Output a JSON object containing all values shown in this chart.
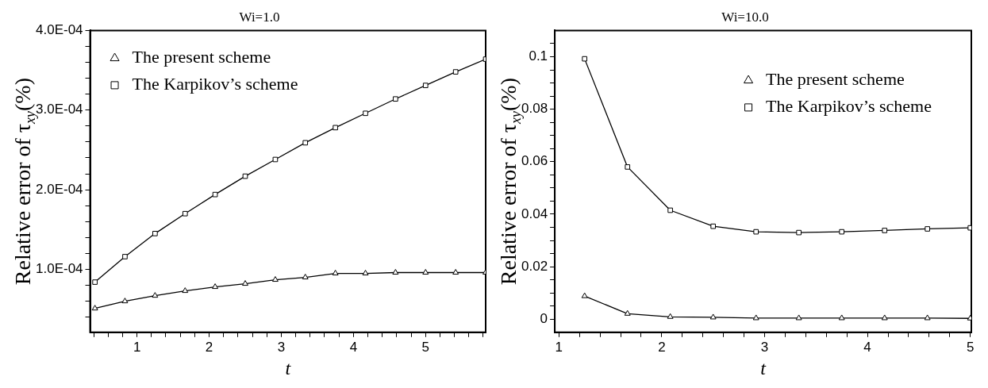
{
  "chart_data": [
    {
      "type": "line",
      "title": "Wi=1.0",
      "xlabel": "t",
      "ylabel": "Relative error of τ$_{xy}$(%)",
      "legend": "top left",
      "grid": false,
      "line_style": "solid",
      "xlim": [
        0.35,
        5.833
      ],
      "ylim": [
        2.1e-05,
        0.0004
      ],
      "xticks": [
        {
          "value": 0.4,
          "label": null
        },
        {
          "value": 0.6,
          "label": null
        },
        {
          "value": 0.8,
          "label": null
        },
        1,
        {
          "value": 1.2,
          "label": null
        },
        {
          "value": 1.4,
          "label": null
        },
        {
          "value": 1.6,
          "label": null
        },
        {
          "value": 1.8,
          "label": null
        },
        2,
        {
          "value": 2.2,
          "label": null
        },
        {
          "value": 2.4,
          "label": null
        },
        {
          "value": 2.6,
          "label": null
        },
        {
          "value": 2.8,
          "label": null
        },
        3,
        {
          "value": 3.2,
          "label": null
        },
        {
          "value": 3.4,
          "label": null
        },
        {
          "value": 3.6,
          "label": null
        },
        {
          "value": 3.8,
          "label": null
        },
        4,
        {
          "value": 4.2,
          "label": null
        },
        {
          "value": 4.4,
          "label": null
        },
        {
          "value": 4.6,
          "label": null
        },
        {
          "value": 4.8,
          "label": null
        },
        5,
        {
          "value": 5.2,
          "label": null
        },
        {
          "value": 5.4,
          "label": null
        },
        {
          "value": 5.6,
          "label": null
        },
        {
          "value": 5.8,
          "label": null
        }
      ],
      "yticks": [
        {
          "value": 4e-05,
          "label": null
        },
        {
          "value": 6e-05,
          "label": null
        },
        {
          "value": 8e-05,
          "label": null
        },
        {
          "value": 0.0001,
          "label": "1.0E-04"
        },
        {
          "value": 0.00012,
          "label": null
        },
        {
          "value": 0.00014,
          "label": null
        },
        {
          "value": 0.00016,
          "label": null
        },
        {
          "value": 0.00018,
          "label": null
        },
        {
          "value": 0.0002,
          "label": "2.0E-04"
        },
        {
          "value": 0.00022,
          "label": null
        },
        {
          "value": 0.00024,
          "label": null
        },
        {
          "value": 0.00026,
          "label": null
        },
        {
          "value": 0.00028,
          "label": null
        },
        {
          "value": 0.0003,
          "label": "3.0E-04"
        },
        {
          "value": 0.00032,
          "label": null
        },
        {
          "value": 0.00034,
          "label": null
        },
        {
          "value": 0.00036,
          "label": null
        },
        {
          "value": 0.00038,
          "label": null
        },
        {
          "value": 0.0004,
          "label": "4.0E-04"
        }
      ],
      "x": [
        0.417,
        0.833,
        1.25,
        1.667,
        2.083,
        2.5,
        2.917,
        3.333,
        3.75,
        4.167,
        4.583,
        5,
        5.417,
        5.833
      ],
      "series": [
        {
          "name": "The present scheme",
          "color": "#000000",
          "marker": "triangle",
          "values": [
            5.1e-05,
            6e-05,
            6.7e-05,
            7.3e-05,
            7.8e-05,
            8.2e-05,
            8.7e-05,
            9e-05,
            9.5e-05,
            9.5e-05,
            9.6e-05,
            9.6e-05,
            9.6e-05,
            9.6e-05
          ]
        },
        {
          "name": "The Karpikov’s scheme",
          "color": "#000000",
          "marker": "square",
          "values": [
            8.4e-05,
            0.000116,
            0.000145,
            0.00017,
            0.000194,
            0.000217,
            0.000238,
            0.000259,
            0.000278,
            0.000296,
            0.000314,
            0.000331,
            0.000348,
            0.000364
          ]
        }
      ]
    },
    {
      "type": "line",
      "title": "Wi=10.0",
      "xlabel": "t",
      "ylabel": "Relative error of τ$_{xy}$(%)",
      "legend": "top right",
      "grid": false,
      "line_style": "solid",
      "xlim": [
        0.96,
        5.01
      ],
      "ylim": [
        -0.005,
        0.11
      ],
      "xticks": [
        1,
        {
          "value": 1.2,
          "label": null
        },
        {
          "value": 1.4,
          "label": null
        },
        {
          "value": 1.6,
          "label": null
        },
        {
          "value": 1.8,
          "label": null
        },
        2,
        {
          "value": 2.2,
          "label": null
        },
        {
          "value": 2.4,
          "label": null
        },
        {
          "value": 2.6,
          "label": null
        },
        {
          "value": 2.8,
          "label": null
        },
        3,
        {
          "value": 3.2,
          "label": null
        },
        {
          "value": 3.4,
          "label": null
        },
        {
          "value": 3.6,
          "label": null
        },
        {
          "value": 3.8,
          "label": null
        },
        4,
        {
          "value": 4.2,
          "label": null
        },
        {
          "value": 4.4,
          "label": null
        },
        {
          "value": 4.6,
          "label": null
        },
        {
          "value": 4.8,
          "label": null
        },
        5
      ],
      "yticks": [
        0,
        {
          "value": 0.005,
          "label": null
        },
        {
          "value": 0.01,
          "label": null
        },
        {
          "value": 0.015,
          "label": null
        },
        0.02,
        {
          "value": 0.025,
          "label": null
        },
        {
          "value": 0.03,
          "label": null
        },
        {
          "value": 0.035,
          "label": null
        },
        0.04,
        {
          "value": 0.045,
          "label": null
        },
        {
          "value": 0.05,
          "label": null
        },
        {
          "value": 0.055,
          "label": null
        },
        0.06,
        {
          "value": 0.065,
          "label": null
        },
        {
          "value": 0.07,
          "label": null
        },
        {
          "value": 0.075,
          "label": null
        },
        0.08,
        {
          "value": 0.085,
          "label": null
        },
        {
          "value": 0.09,
          "label": null
        },
        {
          "value": 0.095,
          "label": null
        },
        0.1,
        {
          "value": 0.105,
          "label": null
        }
      ],
      "x": [
        1.25,
        1.667,
        2.083,
        2.5,
        2.917,
        3.333,
        3.75,
        4.167,
        4.583,
        5
      ],
      "series": [
        {
          "name": "The present scheme",
          "color": "#000000",
          "marker": "triangle",
          "values": [
            0.0088,
            0.0021,
            0.0009,
            0.0007,
            0.0004,
            0.0004,
            0.0004,
            0.0004,
            0.0004,
            0.0003
          ]
        },
        {
          "name": "The Karpikov’s scheme",
          "color": "#000000",
          "marker": "square",
          "values": [
            0.0992,
            0.058,
            0.0415,
            0.0354,
            0.0333,
            0.033,
            0.0333,
            0.0338,
            0.0344,
            0.0348
          ]
        }
      ]
    }
  ]
}
